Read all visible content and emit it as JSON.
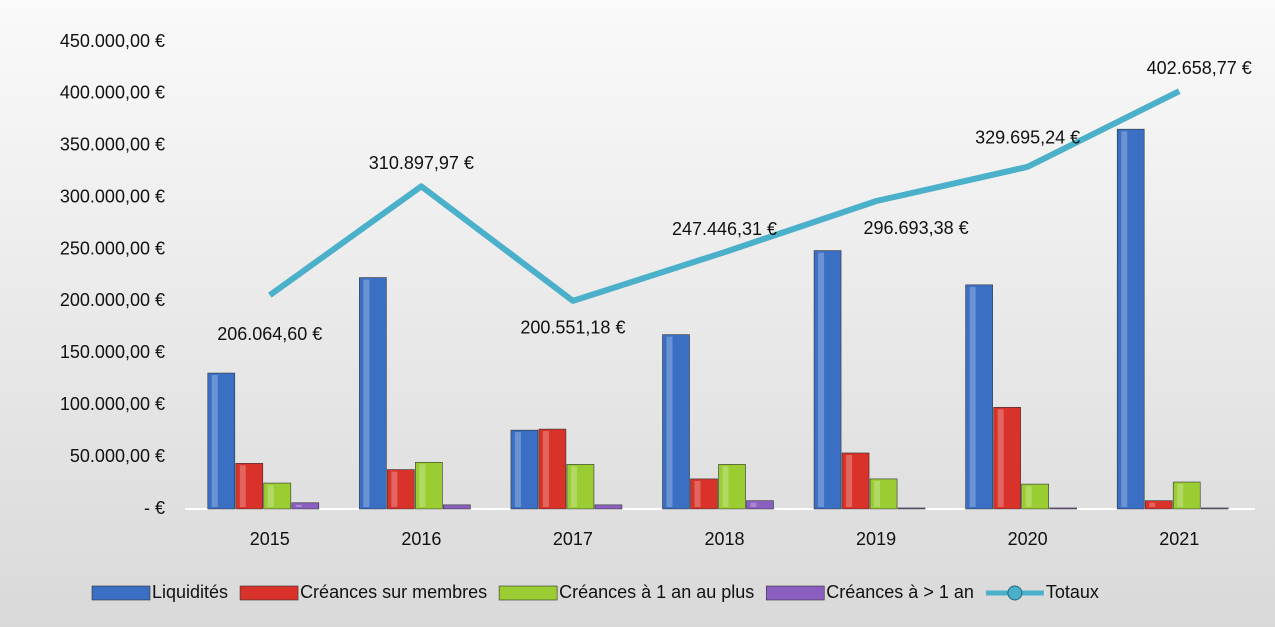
{
  "chart_data": {
    "type": "bar",
    "categories": [
      "2015",
      "2016",
      "2017",
      "2018",
      "2019",
      "2020",
      "2021"
    ],
    "series": [
      {
        "name": "Liquidités",
        "color": "#3a6fc4",
        "values": [
          131000,
          223000,
          76000,
          168000,
          249000,
          216000,
          366000
        ]
      },
      {
        "name": "Créances sur membres",
        "color": "#d9322b",
        "values": [
          44000,
          38000,
          77000,
          29000,
          54000,
          98000,
          8000
        ]
      },
      {
        "name": "Créances à 1 an au plus",
        "color": "#9acd32",
        "values": [
          25000,
          45000,
          43000,
          43000,
          29000,
          24000,
          26000
        ]
      },
      {
        "name": "Créances à > 1 an",
        "color": "#8a5fc0",
        "values": [
          6000,
          4000,
          4000,
          8000,
          1000,
          1000,
          1000
        ]
      },
      {
        "name": "Totaux",
        "color": "#4bb0c9",
        "type": "line",
        "values": [
          206064.6,
          310897.97,
          200551.18,
          247446.31,
          296693.38,
          329695.24,
          402658.77
        ],
        "value_labels": [
          "206.064,60 €",
          "310.897,97 €",
          "200.551,18 €",
          "247.446,31 €",
          "296.693,38 €",
          "329.695,24 €",
          "402.658,77 €"
        ]
      }
    ],
    "ylim": [
      0,
      450000
    ],
    "yticks": [
      {
        "value": 0,
        "label": "-   €"
      },
      {
        "value": 50000,
        "label": "50.000,00 €"
      },
      {
        "value": 100000,
        "label": "100.000,00 €"
      },
      {
        "value": 150000,
        "label": "150.000,00 €"
      },
      {
        "value": 200000,
        "label": "200.000,00 €"
      },
      {
        "value": 250000,
        "label": "250.000,00 €"
      },
      {
        "value": 300000,
        "label": "300.000,00 €"
      },
      {
        "value": 350000,
        "label": "350.000,00 €"
      },
      {
        "value": 400000,
        "label": "400.000,00 €"
      },
      {
        "value": 450000,
        "label": "450.000,00 €"
      }
    ],
    "grid": false,
    "legend": "bottom"
  }
}
